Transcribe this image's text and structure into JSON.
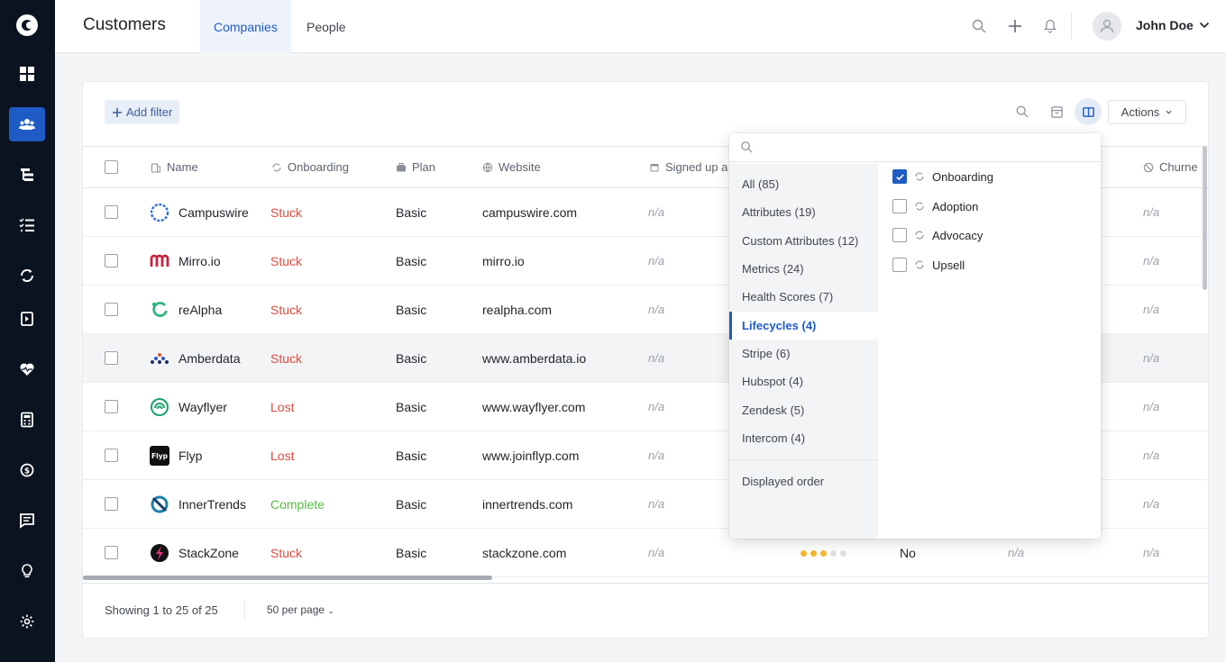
{
  "nav": {
    "items": [
      {
        "icon": "dashboard-icon"
      },
      {
        "icon": "users-icon",
        "active": true
      },
      {
        "icon": "hierarchy-icon"
      },
      {
        "icon": "checklist-icon"
      },
      {
        "icon": "lifecycle-icon"
      },
      {
        "icon": "playbook-icon"
      },
      {
        "icon": "health-heart-icon"
      },
      {
        "icon": "calculator-icon"
      },
      {
        "icon": "churn-icon"
      },
      {
        "icon": "messages-icon"
      },
      {
        "icon": "lightbulb-icon"
      },
      {
        "icon": "settings-icon"
      }
    ]
  },
  "header": {
    "title": "Customers",
    "tabs": [
      "Companies",
      "People"
    ],
    "active_tab": "Companies",
    "user": "John Doe"
  },
  "toolbar": {
    "add_filter": "Add filter",
    "actions": "Actions"
  },
  "table": {
    "columns": [
      "Name",
      "Onboarding",
      "Plan",
      "Website",
      "Signed up a",
      "Churne"
    ],
    "rows": [
      {
        "name": "Campuswire",
        "onboarding": "Stuck",
        "plan": "Basic",
        "website": "campuswire.com",
        "signed_up": "n/a",
        "churned": "n/a"
      },
      {
        "name": "Mirro.io",
        "onboarding": "Stuck",
        "plan": "Basic",
        "website": "mirro.io",
        "signed_up": "n/a",
        "churned": "n/a"
      },
      {
        "name": "reAlpha",
        "onboarding": "Stuck",
        "plan": "Basic",
        "website": "realpha.com",
        "signed_up": "n/a",
        "churned": "n/a"
      },
      {
        "name": "Amberdata",
        "onboarding": "Stuck",
        "plan": "Basic",
        "website": "www.amberdata.io",
        "signed_up": "n/a",
        "churned": "n/a"
      },
      {
        "name": "Wayflyer",
        "onboarding": "Lost",
        "plan": "Basic",
        "website": "www.wayflyer.com",
        "signed_up": "n/a",
        "churned": "n/a"
      },
      {
        "name": "Flyp",
        "onboarding": "Lost",
        "plan": "Basic",
        "website": "www.joinflyp.com",
        "signed_up": "n/a",
        "churned": "n/a",
        "logo_text": "Flyp"
      },
      {
        "name": "InnerTrends",
        "onboarding": "Complete",
        "plan": "Basic",
        "website": "innertrends.com",
        "signed_up": "n/a",
        "churned": "n/a"
      },
      {
        "name": "StackZone",
        "onboarding": "Stuck",
        "plan": "Basic",
        "website": "stackzone.com",
        "signed_up": "n/a",
        "rating": 3,
        "flag": "No",
        "extra": "n/a",
        "churned": "n/a"
      }
    ]
  },
  "footer": {
    "showing": "Showing 1 to 25 of 25",
    "per_page": "50 per page"
  },
  "column_picker": {
    "search_placeholder": "",
    "categories": [
      "All (85)",
      "Attributes (19)",
      "Custom Attributes (12)",
      "Metrics (24)",
      "Health Scores (7)",
      "Lifecycles (4)",
      "Stripe (6)",
      "Hubspot (4)",
      "Zendesk (5)",
      "Intercom (4)"
    ],
    "active_category": "Lifecycles (4)",
    "displayed_order": "Displayed order",
    "options": [
      {
        "label": "Onboarding",
        "checked": true
      },
      {
        "label": "Adoption",
        "checked": false
      },
      {
        "label": "Advocacy",
        "checked": false
      },
      {
        "label": "Upsell",
        "checked": false
      }
    ]
  },
  "colors": {
    "accent": "#1f5bc5",
    "rail": "#0b1320",
    "stuck": "#e04b3f",
    "complete": "#58b947",
    "rating": "#f5b82e"
  }
}
